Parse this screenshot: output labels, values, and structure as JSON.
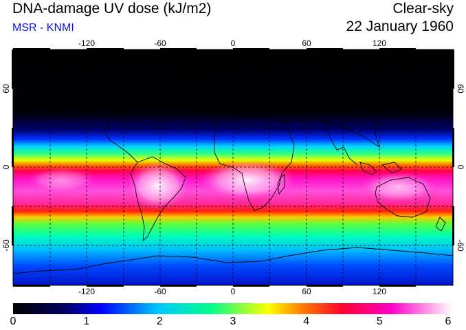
{
  "header": {
    "title": "DNA-damage UV dose (kJ/m2)",
    "source": "MSR - KNMI",
    "mode": "Clear-sky",
    "date": "22 January 1960"
  },
  "colors": {
    "source_text": "#1010ee"
  },
  "map": {
    "projection": "equirectangular",
    "lon_labels": [
      "-120",
      "-60",
      "0",
      "60",
      "120"
    ],
    "lat_labels": [
      "60",
      "0",
      "-60"
    ]
  },
  "colorbar": {
    "min": 0,
    "max": 6,
    "tick_labels": [
      "0",
      "1",
      "2",
      "3",
      "4",
      "5",
      "6"
    ],
    "stops": [
      "#000000",
      "#00005a",
      "#0000ff",
      "#00c8ff",
      "#00ff8c",
      "#ffff00",
      "#ff7800",
      "#ff0032",
      "#ff00c8",
      "#ffffff"
    ]
  }
}
